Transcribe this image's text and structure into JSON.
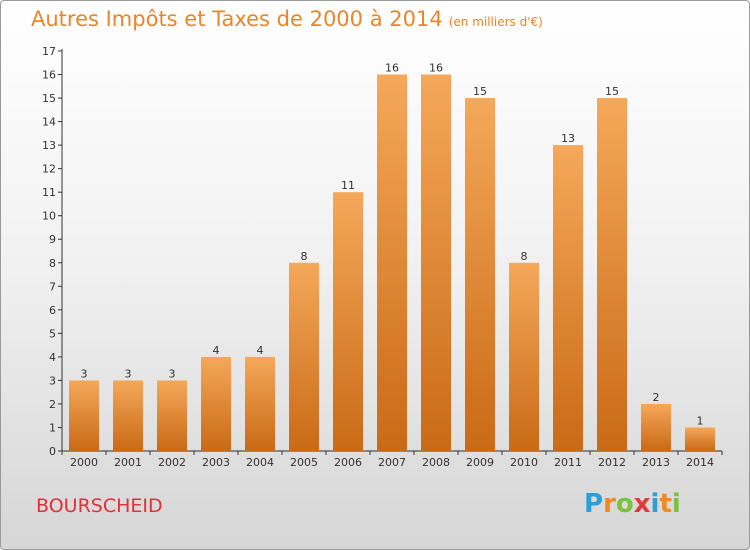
{
  "title": "Autres Impôts et Taxes de 2000 à 2014",
  "unit": "(en milliers d'€)",
  "commune": "BOURSCHEID",
  "logo": {
    "letters": [
      "P",
      "r",
      "o",
      "x",
      "i",
      "t",
      "i"
    ],
    "colors": [
      "#2b9fd8",
      "#f08a24",
      "#7dc142",
      "#e23a3a",
      "#2b9fd8",
      "#f08a24",
      "#7dc142"
    ]
  },
  "colors": {
    "bar_top": "#f5a85a",
    "bar_bottom": "#c96a16",
    "title": "#e8862c",
    "commune": "#e0303a",
    "axis": "#333333",
    "grid": "#cccccc"
  },
  "chart_data": {
    "type": "bar",
    "categories": [
      "2000",
      "2001",
      "2002",
      "2003",
      "2004",
      "2005",
      "2006",
      "2007",
      "2008",
      "2009",
      "2010",
      "2011",
      "2012",
      "2013",
      "2014"
    ],
    "values": [
      3,
      3,
      3,
      4,
      4,
      8,
      11,
      16,
      16,
      15,
      8,
      13,
      15,
      2,
      1
    ],
    "title": "Autres Impôts et Taxes de 2000 à 2014",
    "xlabel": "",
    "ylabel": "",
    "ylim": [
      0,
      17
    ],
    "yticks": [
      0,
      1,
      2,
      3,
      4,
      5,
      6,
      7,
      8,
      9,
      10,
      11,
      12,
      13,
      14,
      15,
      16,
      17
    ],
    "grid": false,
    "data_labels": true
  }
}
